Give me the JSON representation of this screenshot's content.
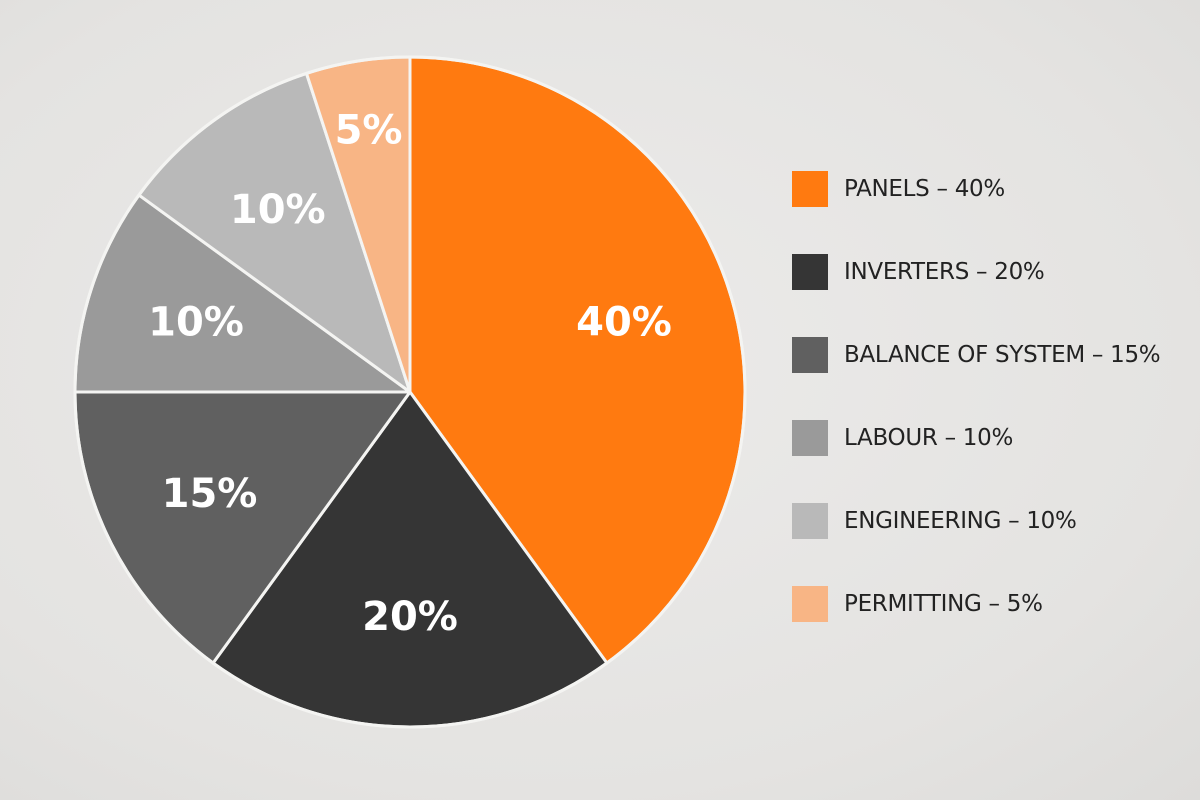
{
  "chart_data": {
    "type": "pie",
    "title": "",
    "slices": [
      {
        "name": "PANELS",
        "value": 40,
        "label": "40%",
        "color": "#ff7a10"
      },
      {
        "name": "INVERTERS",
        "value": 20,
        "label": "20%",
        "color": "#353535"
      },
      {
        "name": "BALANCE OF SYSTEM",
        "value": 15,
        "label": "15%",
        "color": "#606060"
      },
      {
        "name": "LABOUR",
        "value": 10,
        "label": "10%",
        "color": "#9a9a9a"
      },
      {
        "name": "ENGINEERING",
        "value": 10,
        "label": "10%",
        "color": "#b9b9b9"
      },
      {
        "name": "PERMITTING",
        "value": 5,
        "label": "5%",
        "color": "#f8b585"
      }
    ],
    "legend": {
      "placement": "right",
      "items": [
        "PANELS – 40%",
        "INVERTERS – 20%",
        "BALANCE OF SYSTEM – 15%",
        "LABOUR – 10%",
        "ENGINEERING – 10%",
        "PERMITTING – 5%"
      ]
    }
  }
}
